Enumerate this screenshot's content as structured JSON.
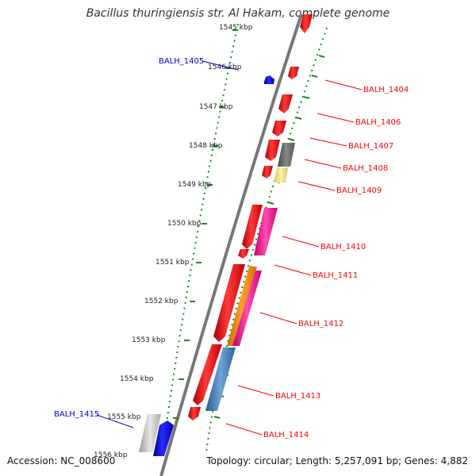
{
  "title": "Bacillus thuringiensis str. Al Hakam, complete genome",
  "footer": {
    "accession": "Accession: NC_008600",
    "summary": "Topology: circular; Length: 5,257,091 bp; Genes: 4,882"
  },
  "kbp_ticks": [
    "1545 kbp",
    "1546 kbp",
    "1547 kbp",
    "1548 kbp",
    "1549 kbp",
    "1550 kbp",
    "1551 kbp",
    "1552 kbp",
    "1553 kbp",
    "1554 kbp",
    "1555 kbp",
    "1556 kbp"
  ],
  "genes_forward": [
    {
      "label": "BALH_1404",
      "color": "#ff0000"
    },
    {
      "label": "BALH_1406",
      "color": "#ff0000"
    },
    {
      "label": "BALH_1407",
      "color": "#ff0000"
    },
    {
      "label": "BALH_1408",
      "color": "#ff0000"
    },
    {
      "label": "BALH_1409",
      "color": "#ff0000"
    },
    {
      "label": "BALH_1410",
      "color": "#ff0000"
    },
    {
      "label": "BALH_1411",
      "color": "#ff0000"
    },
    {
      "label": "BALH_1412",
      "color": "#ff0000"
    },
    {
      "label": "BALH_1413",
      "color": "#ff0000"
    },
    {
      "label": "BALH_1414",
      "color": "#ff0000"
    }
  ],
  "genes_reverse": [
    {
      "label": "BALH_1405",
      "color": "#0000cc"
    },
    {
      "label": "BALH_1415",
      "color": "#0000cc"
    }
  ],
  "colors": {
    "forward": "#ff0000",
    "reverse": "#0000ff",
    "backbone": "#777777",
    "ticks": "#1e8a1e",
    "cog_gray": "#666666",
    "cog_yellow": "#f3e28a",
    "cog_pink": "#ff1f9a",
    "cog_orange": "#ff8c00",
    "cog_blue": "#3a78b8",
    "cog_light": "#bdbdbd"
  }
}
